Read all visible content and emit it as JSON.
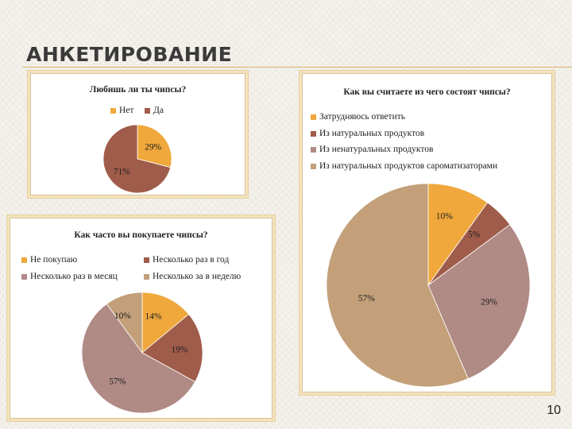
{
  "slide": {
    "title": "АНКЕТИРОВАНИЕ",
    "page_number": "10"
  },
  "chart_data": [
    {
      "type": "pie",
      "title": "Любишь ли ты чипсы?",
      "categories": [
        "Нет",
        "Да"
      ],
      "values": [
        29,
        71
      ],
      "labels": [
        "29%",
        "71%"
      ],
      "colors": [
        "#f0a83c",
        "#a05c4a"
      ],
      "legend": "top"
    },
    {
      "type": "pie",
      "title": "Как вы считаете из чего состоят чипсы?",
      "categories": [
        "Затрудняюсь ответить",
        "Из натуральных продуктов",
        "Из ненатуральных продуктов",
        "Из натуральных продуктов сароматизаторами"
      ],
      "values": [
        10,
        5,
        29,
        57
      ],
      "labels": [
        "10%",
        "5%",
        "29%",
        "57%"
      ],
      "colors": [
        "#f0a83c",
        "#a05c4a",
        "#b08a84",
        "#c3a07a"
      ],
      "legend": "top"
    },
    {
      "type": "pie",
      "title": "Как часто вы покупаете чипсы?",
      "categories": [
        "Не покупаю",
        "Несколько раз в год",
        "Несколько раз в месяц",
        "Несколько за в неделю"
      ],
      "values": [
        14,
        19,
        57,
        10
      ],
      "labels": [
        "14%",
        "19%",
        "57%",
        "10%"
      ],
      "colors": [
        "#f0a83c",
        "#a05c4a",
        "#b08a84",
        "#c3a07a"
      ],
      "legend": "top"
    }
  ]
}
